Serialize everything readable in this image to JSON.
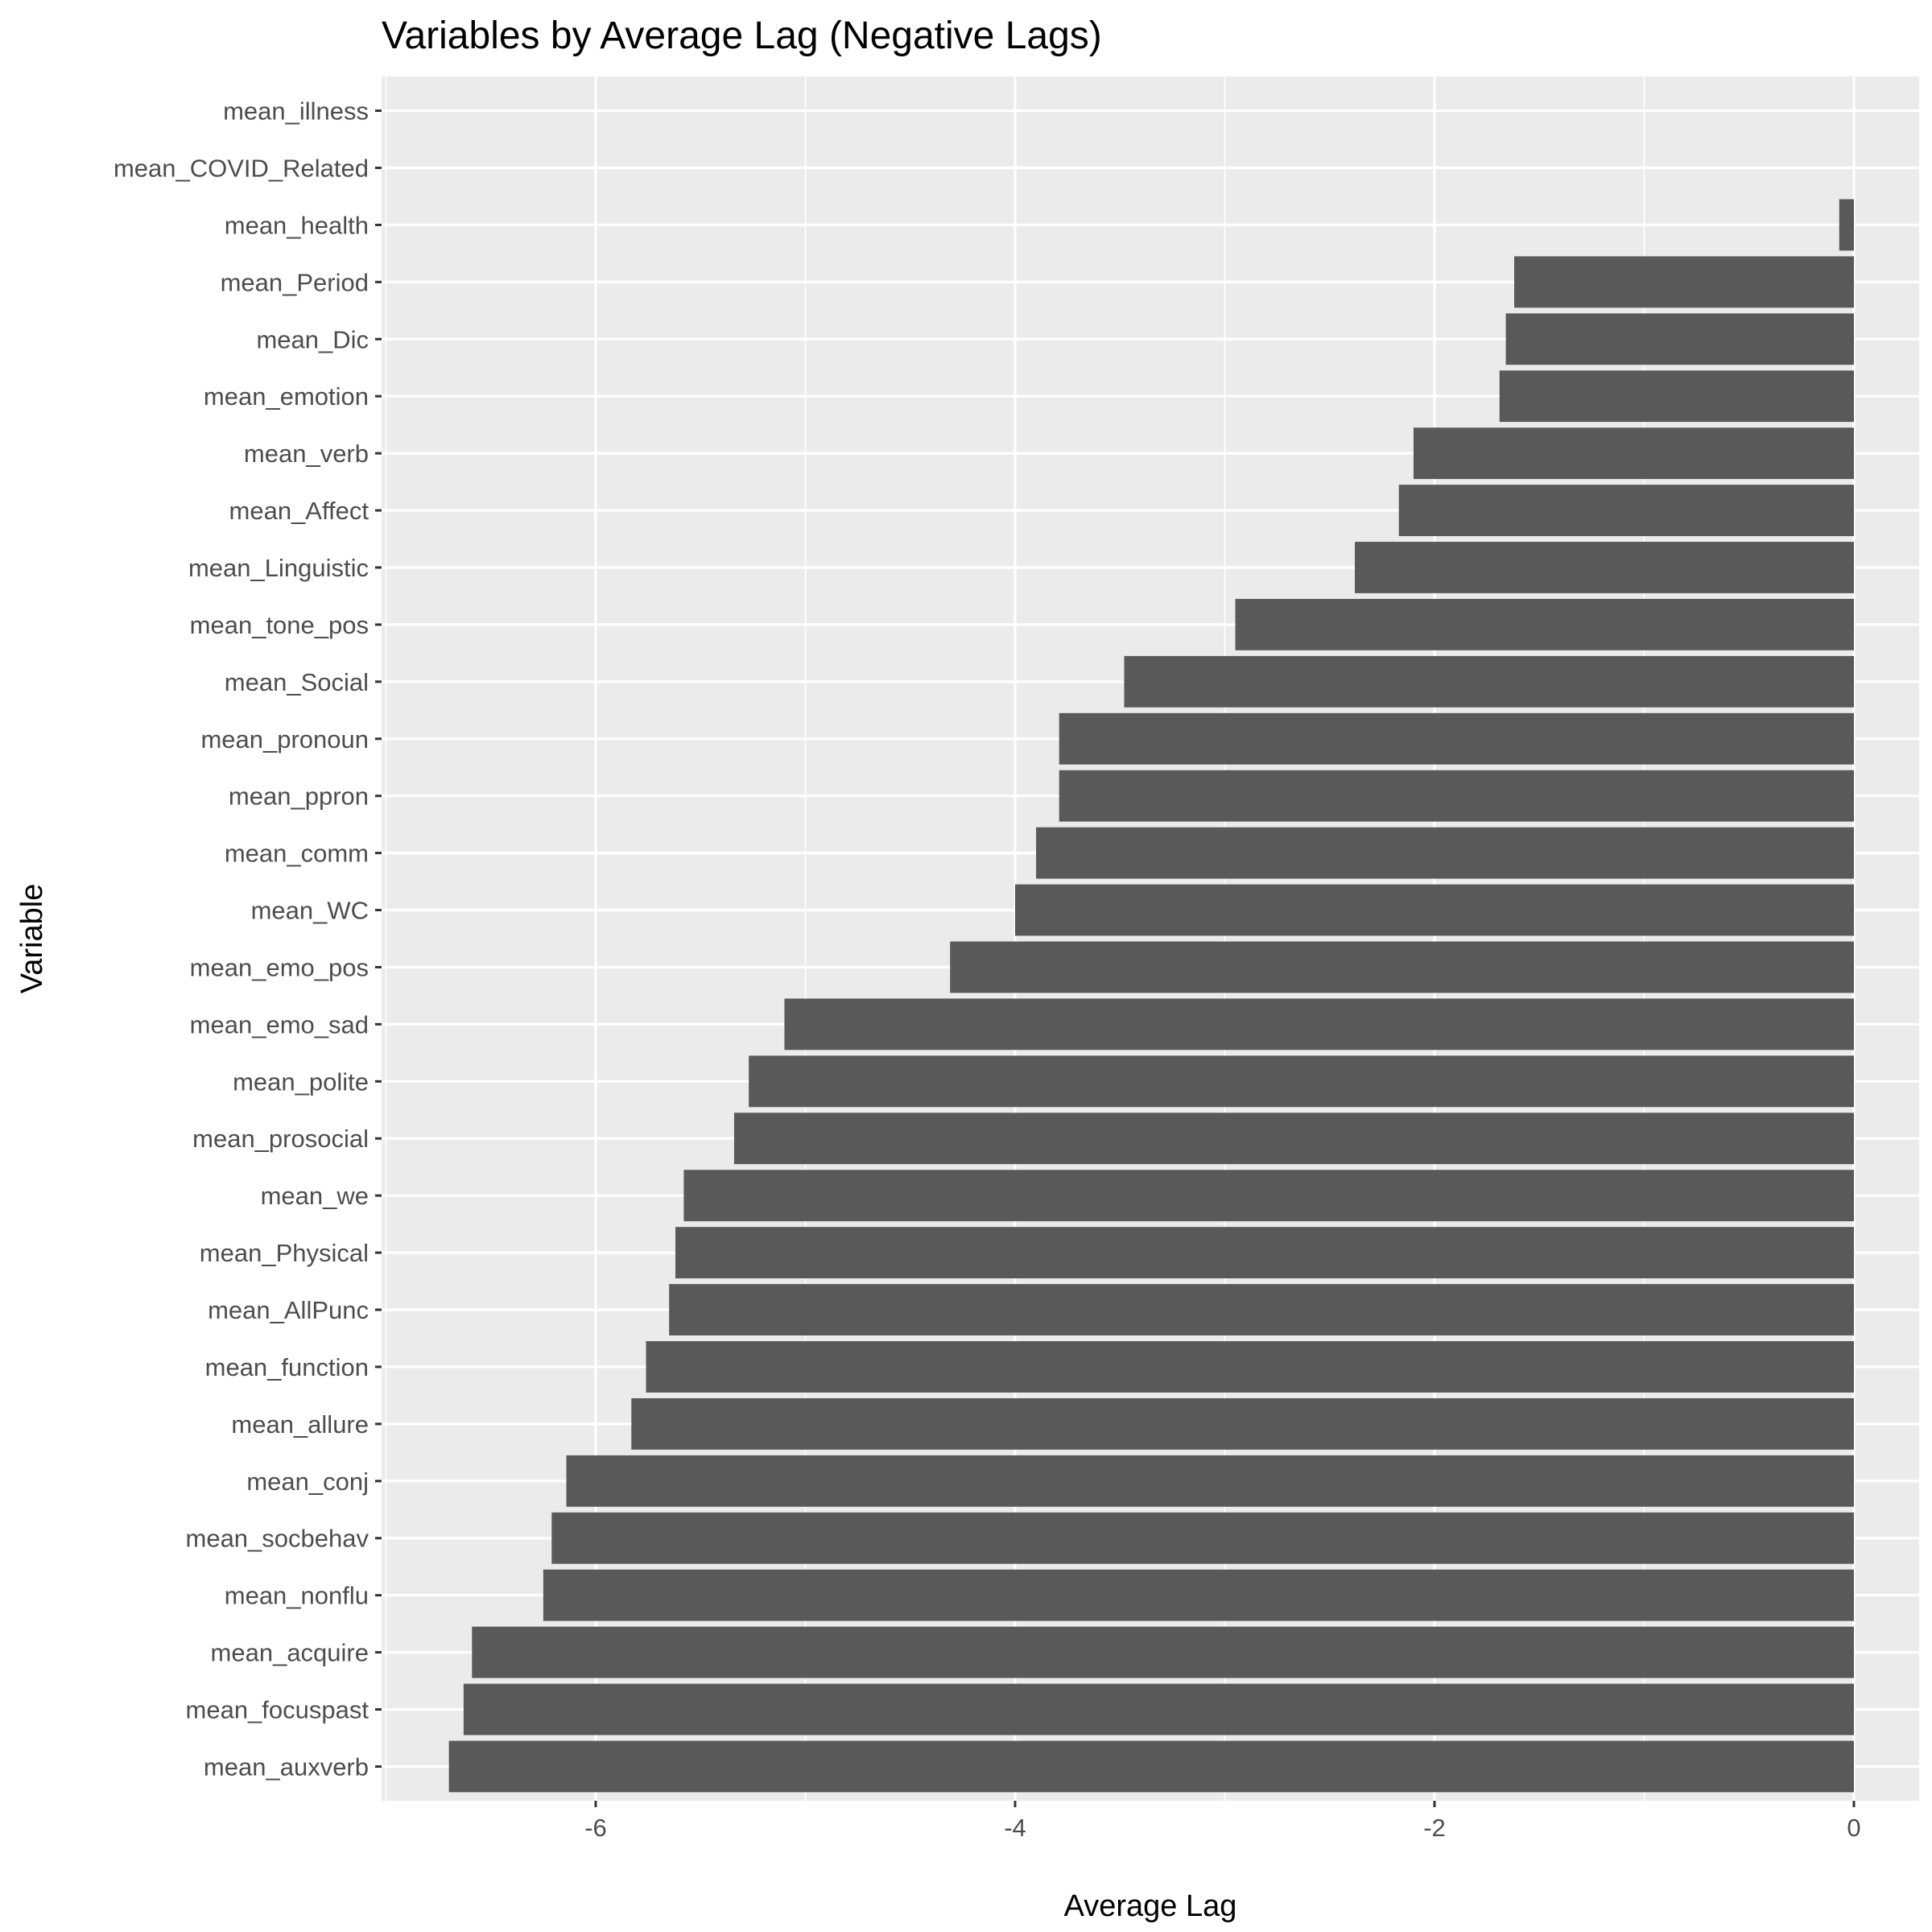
{
  "chart_data": {
    "type": "bar",
    "orientation": "horizontal",
    "title": "Variables by Average Lag (Negative Lags)",
    "xlabel": "Average Lag",
    "ylabel": "Variable",
    "xlim": [
      -7,
      0.2
    ],
    "x_ticks": [
      -6,
      -4,
      -2,
      0
    ],
    "x_tick_labels": [
      "-6",
      "-4",
      "-2",
      "0"
    ],
    "grid": true,
    "legend": "none",
    "bar_color": "#595959",
    "panel_color": "#ebebeb",
    "categories": [
      "mean_illness",
      "mean_COVID_Related",
      "mean_health",
      "mean_Period",
      "mean_Dic",
      "mean_emotion",
      "mean_verb",
      "mean_Affect",
      "mean_Linguistic",
      "mean_tone_pos",
      "mean_Social",
      "mean_pronoun",
      "mean_ppron",
      "mean_comm",
      "mean_WC",
      "mean_emo_pos",
      "mean_emo_sad",
      "mean_polite",
      "mean_prosocial",
      "mean_we",
      "mean_Physical",
      "mean_AllPunc",
      "mean_function",
      "mean_allure",
      "mean_conj",
      "mean_socbehav",
      "mean_nonflu",
      "mean_acquire",
      "mean_focuspast",
      "mean_auxverb"
    ],
    "values": [
      0,
      0,
      -0.07,
      -1.62,
      -1.66,
      -1.69,
      -2.1,
      -2.17,
      -2.38,
      -2.95,
      -3.48,
      -3.79,
      -3.79,
      -3.9,
      -4.0,
      -4.31,
      -5.1,
      -5.27,
      -5.34,
      -5.58,
      -5.62,
      -5.65,
      -5.76,
      -5.83,
      -6.14,
      -6.21,
      -6.25,
      -6.59,
      -6.63,
      -6.7
    ]
  }
}
